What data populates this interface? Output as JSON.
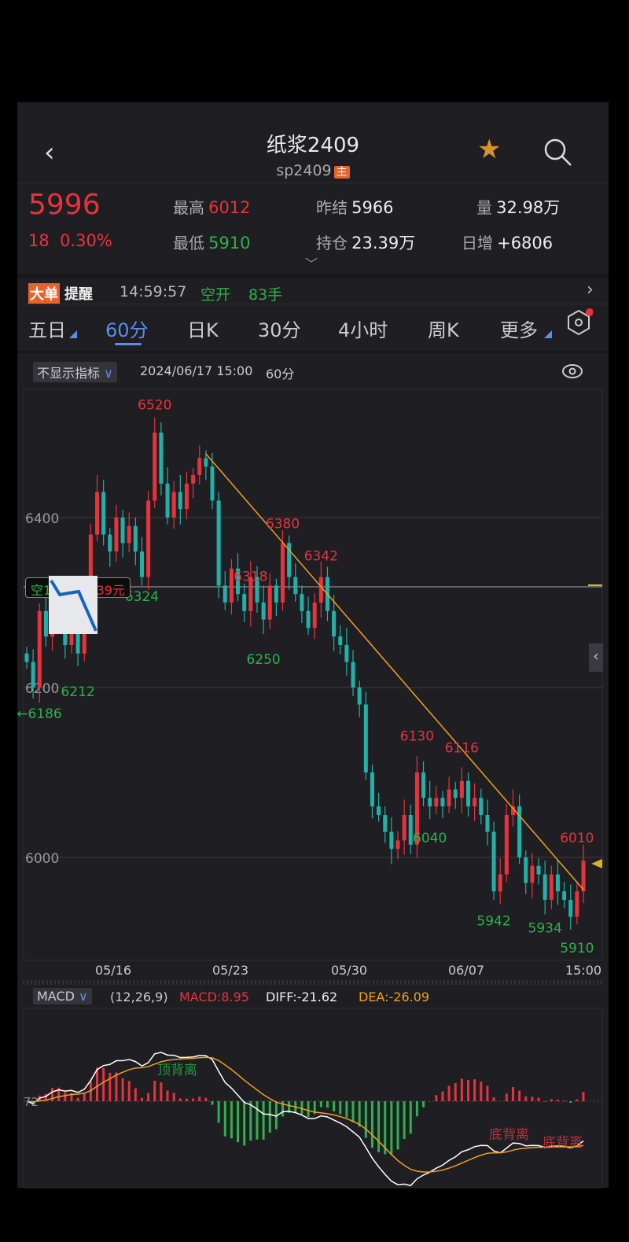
{
  "header": {
    "title": "纸浆2409",
    "code": "sp2409",
    "main_badge": "主"
  },
  "quote": {
    "price": "5996",
    "change": "18",
    "change_pct": "0.30%",
    "high_label": "最高",
    "high": "6012",
    "low_label": "最低",
    "low": "5910",
    "prev_settle_label": "昨结",
    "prev_settle": "5966",
    "oi_label": "持仓",
    "oi": "23.39万",
    "vol_label": "量",
    "vol": "32.98万",
    "daily_inc_label": "日增",
    "daily_inc": "+6806"
  },
  "alert": {
    "badge1": "大单",
    "badge2": "提醒",
    "time": "14:59:57",
    "action": "空开",
    "qty": "83手"
  },
  "tabs": [
    {
      "label": "五日"
    },
    {
      "label": "60分",
      "active": true
    },
    {
      "label": "日K"
    },
    {
      "label": "30分"
    },
    {
      "label": "4小时"
    },
    {
      "label": "周K"
    },
    {
      "label": "更多"
    }
  ],
  "toolbar": {
    "indicator_select": "不显示指标",
    "datetime": "2024/06/17 15:00",
    "period": "60分"
  },
  "position_tag": {
    "left": "空1",
    "right": "39元"
  },
  "colors": {
    "up": "#e8323c",
    "down": "#20b2aa",
    "trend": "#f0a020",
    "diff": "#ffffff",
    "dea": "#f0a020"
  },
  "chart_data": {
    "type": "candlestick",
    "y_ticks": [
      "6400",
      "6200",
      "6000"
    ],
    "x_ticks": [
      "05/16",
      "05/23",
      "05/30",
      "06/07",
      "15:00"
    ],
    "closes": [
      6230,
      6200,
      6290,
      6260,
      6300,
      6280,
      6250,
      6270,
      6240,
      6300,
      6380,
      6430,
      6380,
      6360,
      6400,
      6370,
      6390,
      6360,
      6330,
      6420,
      6500,
      6440,
      6400,
      6430,
      6410,
      6440,
      6450,
      6470,
      6460,
      6420,
      6320,
      6300,
      6340,
      6310,
      6290,
      6330,
      6300,
      6280,
      6320,
      6300,
      6370,
      6330,
      6310,
      6290,
      6270,
      6300,
      6330,
      6290,
      6260,
      6250,
      6230,
      6200,
      6180,
      6100,
      6060,
      6050,
      6030,
      6010,
      6020,
      6050,
      6015,
      6100,
      6070,
      6060,
      6070,
      6060,
      6080,
      6070,
      6090,
      6060,
      6070,
      6050,
      6030,
      5960,
      5980,
      6050,
      6060,
      6000,
      5970,
      5990,
      5980,
      5950,
      5980,
      5960,
      5950,
      5930,
      5960,
      5996
    ],
    "annotations": [
      {
        "text": "6520",
        "price": 6520,
        "index": 20,
        "color": "red"
      },
      {
        "text": "6324",
        "price": 6324,
        "index": 18,
        "color": "green"
      },
      {
        "text": "6212",
        "price": 6212,
        "index": 8,
        "color": "green"
      },
      {
        "text": "←6186",
        "price": 6186,
        "index": 0,
        "color": "green"
      },
      {
        "text": "6380",
        "price": 6380,
        "index": 40,
        "color": "red"
      },
      {
        "text": "6318",
        "price": 6318,
        "index": 35,
        "color": "red"
      },
      {
        "text": "6342",
        "price": 6342,
        "index": 46,
        "color": "red"
      },
      {
        "text": "6250",
        "price": 6250,
        "index": 37,
        "color": "green"
      },
      {
        "text": "6130",
        "price": 6130,
        "index": 61,
        "color": "red"
      },
      {
        "text": "6116",
        "price": 6116,
        "index": 68,
        "color": "red"
      },
      {
        "text": "6040",
        "price": 6040,
        "index": 63,
        "color": "green"
      },
      {
        "text": "5942",
        "price": 5942,
        "index": 73,
        "color": "green"
      },
      {
        "text": "5934",
        "price": 5934,
        "index": 81,
        "color": "green"
      },
      {
        "text": "6010",
        "price": 6010,
        "index": 86,
        "color": "red"
      },
      {
        "text": "5910",
        "price": 5910,
        "index": 86,
        "color": "green"
      }
    ],
    "trendline": {
      "from": {
        "index": 28,
        "price": 6475
      },
      "to": {
        "index": 87,
        "price": 5962
      }
    },
    "ylim": [
      5880,
      6545
    ]
  },
  "macd": {
    "selector": "MACD",
    "params": "(12,26,9)",
    "macd": "MACD:8.95",
    "diff": "DIFF:-21.62",
    "dea": "DEA:-26.09",
    "axis_label": "72",
    "signals": [
      "顶背离",
      "底背离",
      "底背离"
    ]
  }
}
